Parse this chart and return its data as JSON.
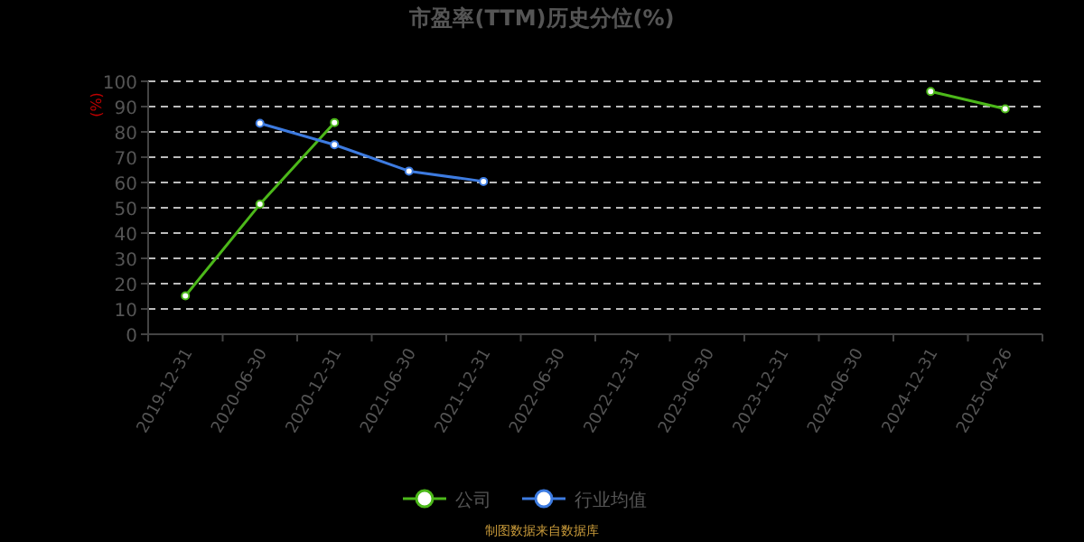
{
  "chart_data": {
    "type": "line",
    "title": "市盈率(TTM)历史分位(%)",
    "ylabel": "(%)",
    "categories": [
      "2019-12-31",
      "2020-06-30",
      "2020-12-31",
      "2021-06-30",
      "2021-12-31",
      "2022-06-30",
      "2022-12-31",
      "2023-06-30",
      "2023-12-31",
      "2024-06-30",
      "2024-12-31",
      "2025-04-26"
    ],
    "series": [
      {
        "name": "公司",
        "color": "#4cb81a",
        "values": [
          15.2,
          51.4,
          83.7,
          null,
          null,
          null,
          null,
          null,
          null,
          null,
          96,
          89.1
        ]
      },
      {
        "name": "行业均值",
        "color": "#3d7be0",
        "values": [
          null,
          83.4,
          74.9,
          64.5,
          60.4,
          null,
          null,
          null,
          null,
          null,
          null,
          null
        ]
      }
    ],
    "ylim": [
      0,
      100
    ],
    "yticks": [
      0,
      10,
      20,
      30,
      40,
      50,
      60,
      70,
      80,
      90,
      100
    ],
    "grid": "y",
    "legend": "bottom",
    "marker": "circle",
    "annotations": [
      "制图数据来自数据库"
    ]
  }
}
